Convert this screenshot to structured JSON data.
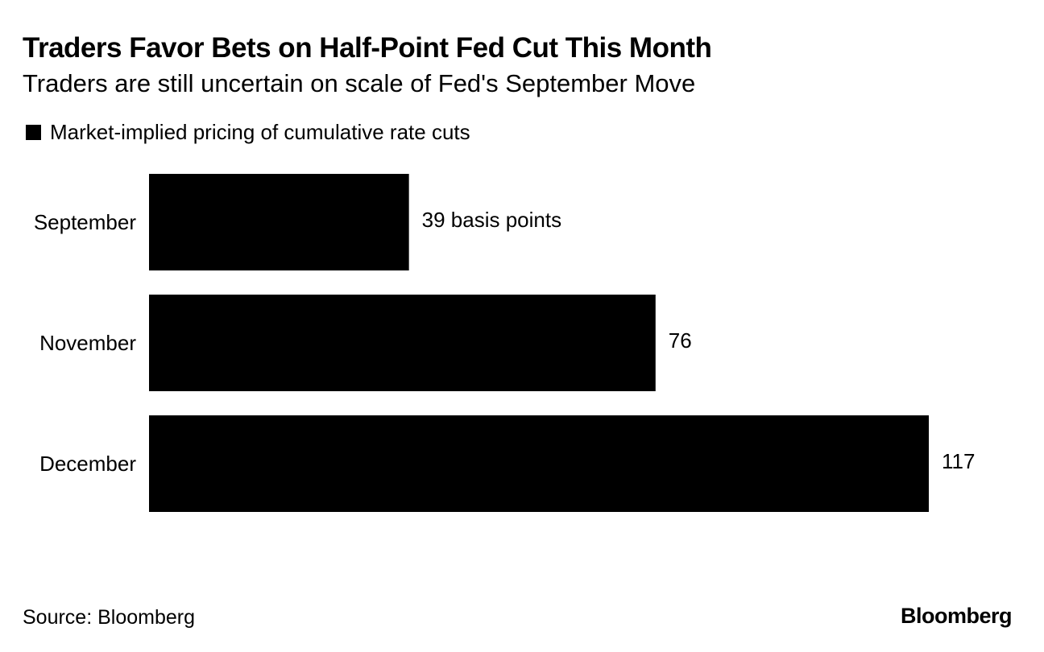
{
  "chart_data": {
    "type": "bar",
    "orientation": "horizontal",
    "title": "Traders Favor Bets on Half-Point Fed Cut This Month",
    "subtitle": "Traders are still uncertain on scale of Fed's September Move",
    "legend": [
      "Market-implied pricing of cumulative rate cuts"
    ],
    "categories": [
      "September",
      "November",
      "December"
    ],
    "values": [
      39,
      76,
      117
    ],
    "data_labels": [
      "39 basis points",
      "76",
      "117"
    ],
    "unit": "basis points",
    "xlim": [
      0,
      117
    ],
    "grid": false,
    "bar_color": "#000000"
  },
  "footer": {
    "source": "Source: Bloomberg",
    "brand": "Bloomberg"
  }
}
